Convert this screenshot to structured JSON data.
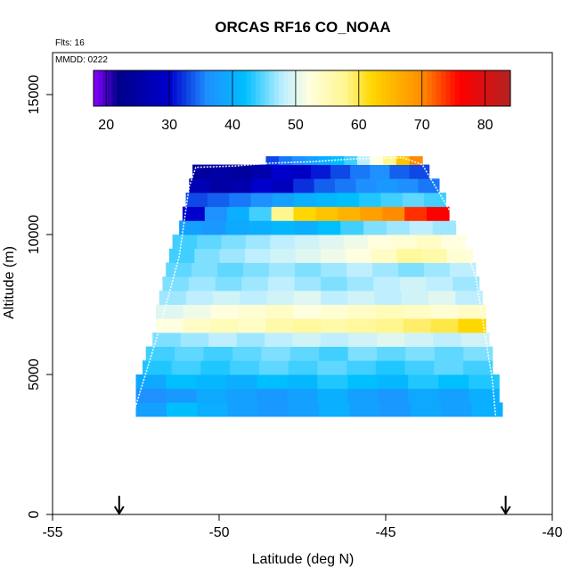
{
  "chart_data": {
    "type": "heatmap",
    "title": "ORCAS RF16 CO_NOAA",
    "subtitle_flights": "Flts: 16",
    "subtitle_date": "MMDD: 0222",
    "xlabel": "Latitude (deg N)",
    "ylabel": "Altitude (m)",
    "xlim": [
      -55,
      -40
    ],
    "ylim": [
      0,
      16500
    ],
    "x_ticks": [
      -55,
      -50,
      -45,
      -40
    ],
    "x_tick_labels": [
      "-55",
      "-50",
      "-45",
      "-40"
    ],
    "y_ticks": [
      0,
      5000,
      10000,
      15000
    ],
    "y_tick_labels": [
      "0",
      "5000",
      "10000",
      "15000"
    ],
    "colorbar": {
      "min": 18,
      "max": 84,
      "ticks": [
        20,
        30,
        40,
        50,
        60,
        70,
        80
      ],
      "tick_labels": [
        "20",
        "30",
        "40",
        "50",
        "60",
        "70",
        "80"
      ],
      "colors": [
        "#8b00ff",
        "#00008b",
        "#0000cd",
        "#1e90ff",
        "#00bfff",
        "#bfefff",
        "#ffffe0",
        "#fff68f",
        "#ffd700",
        "#ff8c00",
        "#ff0000",
        "#b22222"
      ],
      "color_positions": [
        18,
        22,
        30,
        36,
        42,
        48,
        52,
        58,
        62,
        70,
        76,
        84
      ]
    },
    "arrows_latitude": [
      -53,
      -41.4
    ],
    "profile_bands": [
      {
        "alt_bottom": 3500,
        "alt_top": 4000,
        "lat_start": -52.5,
        "lat_end": -41.5,
        "values": [
          38,
          42,
          40,
          38,
          37,
          38,
          40,
          38,
          37,
          39,
          38,
          40
        ]
      },
      {
        "alt_bottom": 4000,
        "alt_top": 4500,
        "lat_start": -52.5,
        "lat_end": -41.6,
        "values": [
          36,
          37,
          39,
          38,
          37,
          38,
          40,
          38,
          37,
          39,
          38,
          40
        ]
      },
      {
        "alt_bottom": 4500,
        "alt_top": 5000,
        "lat_start": -52.5,
        "lat_end": -41.6,
        "values": [
          39,
          42,
          41,
          40,
          42,
          41,
          43,
          42,
          41,
          43,
          42,
          43
        ]
      },
      {
        "alt_bottom": 5000,
        "alt_top": 5500,
        "lat_start": -52.3,
        "lat_end": -41.8,
        "values": [
          43,
          44,
          43,
          44,
          45,
          44,
          45,
          44,
          43,
          44,
          45,
          44
        ]
      },
      {
        "alt_bottom": 5500,
        "alt_top": 6000,
        "lat_start": -52.2,
        "lat_end": -41.8,
        "values": [
          44,
          45,
          44,
          45,
          46,
          45,
          44,
          46,
          45,
          46,
          45,
          46
        ]
      },
      {
        "alt_bottom": 6000,
        "alt_top": 6500,
        "lat_start": -52.0,
        "lat_end": -41.9,
        "values": [
          46,
          47,
          48,
          47,
          48,
          49,
          48,
          49,
          50,
          49,
          48,
          49
        ]
      },
      {
        "alt_bottom": 6500,
        "alt_top": 7000,
        "lat_start": -51.9,
        "lat_end": -42.0,
        "values": [
          52,
          54,
          55,
          54,
          56,
          57,
          56,
          57,
          58,
          59,
          60,
          62
        ]
      },
      {
        "alt_bottom": 7000,
        "alt_top": 7500,
        "lat_start": -51.9,
        "lat_end": -42.0,
        "values": [
          50,
          51,
          52,
          53,
          54,
          52,
          53,
          54,
          55,
          54,
          53,
          54
        ]
      },
      {
        "alt_bottom": 7500,
        "alt_top": 8000,
        "lat_start": -51.8,
        "lat_end": -42.1,
        "values": [
          47,
          48,
          49,
          48,
          49,
          50,
          48,
          49,
          48,
          49,
          50,
          48
        ]
      },
      {
        "alt_bottom": 8000,
        "alt_top": 8500,
        "lat_start": -51.7,
        "lat_end": -42.2,
        "values": [
          46,
          47,
          46,
          47,
          48,
          47,
          46,
          47,
          48,
          49,
          48,
          47
        ]
      },
      {
        "alt_bottom": 8500,
        "alt_top": 9000,
        "lat_start": -51.6,
        "lat_end": -42.3,
        "values": [
          45,
          46,
          45,
          46,
          47,
          46,
          47,
          48,
          47,
          46,
          47,
          48
        ]
      },
      {
        "alt_bottom": 9000,
        "alt_top": 9500,
        "lat_start": -51.5,
        "lat_end": -42.4,
        "values": [
          44,
          46,
          47,
          48,
          49,
          50,
          51,
          52,
          54,
          57,
          56,
          53
        ]
      },
      {
        "alt_bottom": 9500,
        "alt_top": 10000,
        "lat_start": -51.4,
        "lat_end": -42.6,
        "values": [
          44,
          45,
          46,
          47,
          48,
          49,
          50,
          51,
          52,
          53,
          54,
          52
        ]
      },
      {
        "alt_bottom": 10000,
        "alt_top": 10500,
        "lat_start": -51.2,
        "lat_end": -42.9,
        "values": [
          38,
          37,
          39,
          40,
          41,
          40,
          42,
          44,
          46,
          47,
          48,
          47
        ]
      },
      {
        "alt_bottom": 10500,
        "alt_top": 11000,
        "lat_start": -51.1,
        "lat_end": -43.1,
        "values": [
          30,
          36,
          40,
          44,
          58,
          62,
          64,
          66,
          68,
          70,
          74,
          76
        ]
      },
      {
        "alt_bottom": 11000,
        "alt_top": 11500,
        "lat_start": -51.0,
        "lat_end": -43.2,
        "values": [
          33,
          34,
          35,
          36,
          38,
          40,
          41,
          42,
          43,
          44,
          45,
          44
        ]
      },
      {
        "alt_bottom": 11500,
        "alt_top": 12000,
        "lat_start": -50.9,
        "lat_end": -43.4,
        "values": [
          27,
          25,
          26,
          30,
          28,
          32,
          34,
          35,
          36,
          37,
          36,
          35
        ]
      },
      {
        "alt_bottom": 12000,
        "alt_top": 12500,
        "lat_start": -50.8,
        "lat_end": -43.7,
        "values": [
          24,
          25,
          24,
          26,
          30,
          29,
          31,
          33,
          35,
          36,
          34,
          33
        ]
      },
      {
        "alt_bottom": 12500,
        "alt_top": 12800,
        "lat_start": -48.6,
        "lat_end": -43.9,
        "values": [
          33,
          35,
          36,
          38,
          40,
          42,
          44,
          48,
          52,
          58,
          64,
          70
        ]
      }
    ],
    "flight_track": [
      {
        "lat": -52.6,
        "alt": 3500
      },
      {
        "lat": -51.8,
        "alt": 6600
      },
      {
        "lat": -51.2,
        "alt": 9200
      },
      {
        "lat": -50.9,
        "alt": 11700
      },
      {
        "lat": -50.7,
        "alt": 12400
      },
      {
        "lat": -49.5,
        "alt": 12450
      },
      {
        "lat": -48.5,
        "alt": 12550
      },
      {
        "lat": -47.2,
        "alt": 12600
      },
      {
        "lat": -46.0,
        "alt": 12700
      },
      {
        "lat": -44.5,
        "alt": 12750
      },
      {
        "lat": -43.9,
        "alt": 12500
      },
      {
        "lat": -42.9,
        "alt": 10500
      },
      {
        "lat": -42.3,
        "alt": 8500
      },
      {
        "lat": -41.8,
        "alt": 4800
      },
      {
        "lat": -41.7,
        "alt": 3500
      }
    ]
  }
}
